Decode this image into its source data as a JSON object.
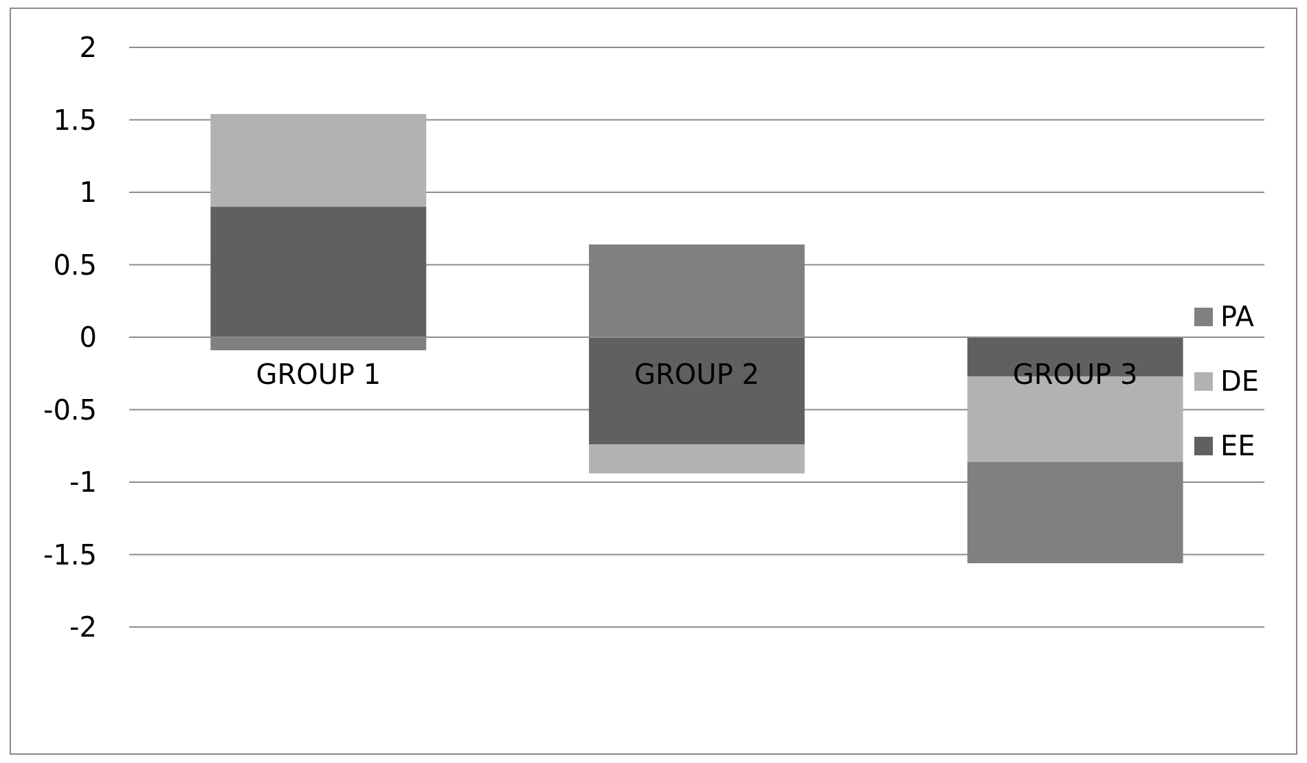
{
  "chart_data": {
    "type": "bar",
    "stacked": true,
    "categories": [
      "GROUP 1",
      "GROUP 2",
      "GROUP 3"
    ],
    "series": [
      {
        "name": "EE",
        "color": "#606060",
        "values": [
          0.9,
          -0.74,
          -0.27
        ]
      },
      {
        "name": "DE",
        "color": "#b2b2b2",
        "values": [
          0.64,
          -0.2,
          -0.59
        ]
      },
      {
        "name": "PA",
        "color": "#808080",
        "values": [
          -0.09,
          0.64,
          -0.7
        ]
      }
    ],
    "ylim": [
      -2,
      2
    ],
    "yticks": [
      -2,
      -1.5,
      -1,
      -0.5,
      0,
      0.5,
      1,
      1.5,
      2
    ],
    "grid": "y",
    "legend": "right"
  }
}
